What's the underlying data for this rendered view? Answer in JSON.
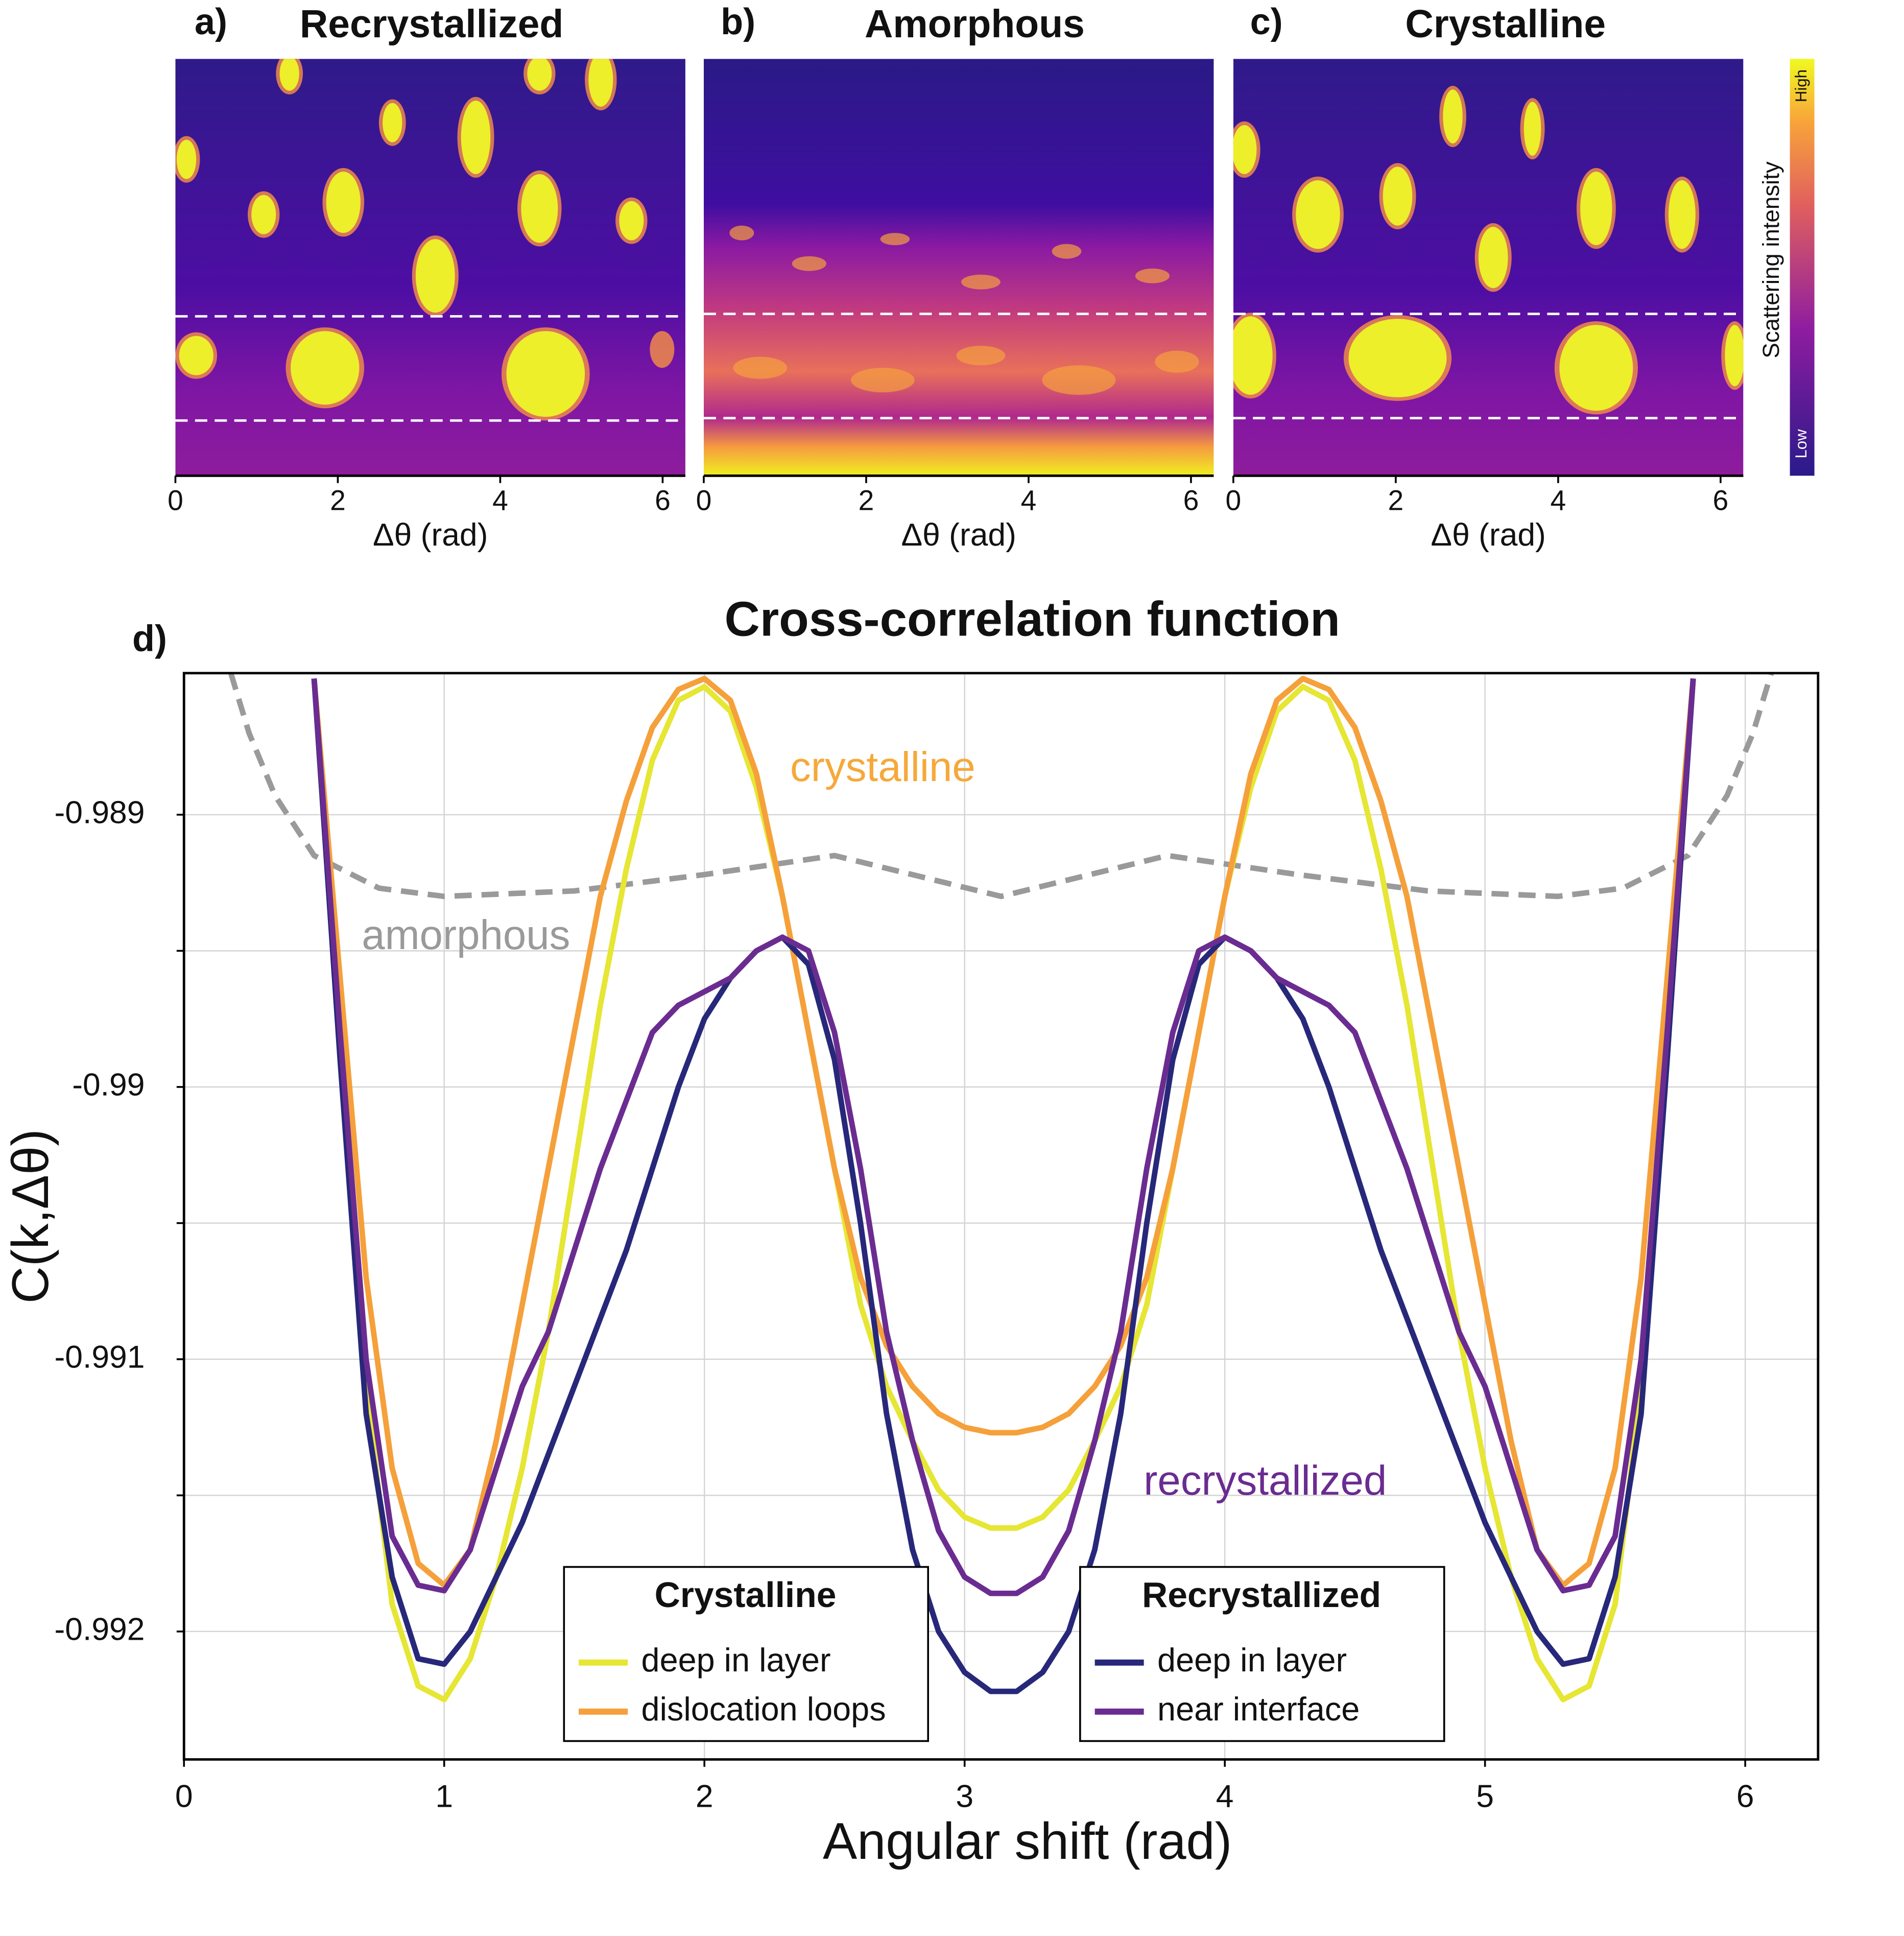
{
  "colorbar": {
    "label": "Scattering intensity",
    "high": "High",
    "low": "Low"
  },
  "chart_data": [
    {
      "type": "heatmap",
      "label": "a)",
      "title": "Recrystallized",
      "xlabel": "Δθ (rad)",
      "xlim": [
        0,
        6.28
      ],
      "xticks": [
        0,
        2,
        4,
        6
      ]
    },
    {
      "type": "heatmap",
      "label": "b)",
      "title": "Amorphous",
      "xlabel": "Δθ (rad)",
      "xlim": [
        0,
        6.28
      ],
      "xticks": [
        0,
        2,
        4,
        6
      ]
    },
    {
      "type": "heatmap",
      "label": "c)",
      "title": "Crystalline",
      "xlabel": "Δθ (rad)",
      "xlim": [
        0,
        6.28
      ],
      "xticks": [
        0,
        2,
        4,
        6
      ]
    },
    {
      "type": "line",
      "label": "d)",
      "title": "Cross-correlation function",
      "xlabel": "Angular shift (rad)",
      "ylabel": "C(k,Δθ)",
      "xlim": [
        0,
        6.28
      ],
      "xticks": [
        0,
        1,
        2,
        3,
        4,
        5,
        6
      ],
      "ylim": [
        -0.99247,
        -0.98848
      ],
      "yticks": [
        -0.989,
        -0.99,
        -0.991,
        -0.992
      ],
      "yminor": [
        -0.9895,
        -0.9905,
        -0.9915
      ],
      "grid": true,
      "x": [
        0.5,
        0.6,
        0.7,
        0.8,
        0.9,
        1.0,
        1.1,
        1.2,
        1.3,
        1.4,
        1.5,
        1.6,
        1.7,
        1.8,
        1.9,
        2.0,
        2.1,
        2.2,
        2.3,
        2.4,
        2.5,
        2.6,
        2.7,
        2.8,
        2.9,
        3.0,
        3.1,
        3.2,
        3.3,
        3.4,
        3.5,
        3.6,
        3.7,
        3.8,
        3.9,
        4.0,
        4.1,
        4.2,
        4.3,
        4.4,
        4.5,
        4.6,
        4.7,
        4.8,
        4.9,
        5.0,
        5.1,
        5.2,
        5.3,
        5.4,
        5.5,
        5.6,
        5.7,
        5.8
      ],
      "groups": [
        {
          "title": "Crystalline",
          "annotation": "crystalline",
          "annotation_color": "#f5a93a",
          "series": [
            {
              "name": "deep in layer",
              "color": "#e6e634",
              "values": [
                -0.9885,
                -0.9898,
                -0.9911,
                -0.9919,
                -0.9922,
                -0.99225,
                -0.9921,
                -0.9918,
                -0.9914,
                -0.9909,
                -0.9903,
                -0.9897,
                -0.9892,
                -0.9888,
                -0.98858,
                -0.98853,
                -0.98862,
                -0.9889,
                -0.9893,
                -0.9898,
                -0.9903,
                -0.9908,
                -0.9911,
                -0.9913,
                -0.99148,
                -0.99158,
                -0.99162,
                -0.99162,
                -0.99158,
                -0.99148,
                -0.9913,
                -0.9911,
                -0.9908,
                -0.9903,
                -0.9898,
                -0.9893,
                -0.9889,
                -0.98862,
                -0.98853,
                -0.98858,
                -0.9888,
                -0.9892,
                -0.9897,
                -0.9903,
                -0.9909,
                -0.9914,
                -0.9918,
                -0.9921,
                -0.99225,
                -0.9922,
                -0.9919,
                -0.9911,
                -0.9898,
                -0.9885
              ]
            },
            {
              "name": "dislocation loops",
              "color": "#f5a03a",
              "values": [
                -0.9885,
                -0.9896,
                -0.9907,
                -0.9914,
                -0.99175,
                -0.99183,
                -0.9917,
                -0.9913,
                -0.9908,
                -0.9903,
                -0.9898,
                -0.9893,
                -0.98895,
                -0.98868,
                -0.98854,
                -0.9885,
                -0.98858,
                -0.98885,
                -0.9893,
                -0.9898,
                -0.9903,
                -0.9907,
                -0.99095,
                -0.9911,
                -0.9912,
                -0.99125,
                -0.99127,
                -0.99127,
                -0.99125,
                -0.9912,
                -0.9911,
                -0.99095,
                -0.9907,
                -0.9903,
                -0.9898,
                -0.9893,
                -0.98885,
                -0.98858,
                -0.9885,
                -0.98854,
                -0.98868,
                -0.98895,
                -0.9893,
                -0.9898,
                -0.9903,
                -0.9908,
                -0.9913,
                -0.9917,
                -0.99183,
                -0.99175,
                -0.9914,
                -0.9907,
                -0.9896,
                -0.9885
              ]
            }
          ]
        },
        {
          "title": "Recrystallized",
          "annotation": "recrystallized",
          "annotation_color": "#6a2c91",
          "series": [
            {
              "name": "deep in layer",
              "color": "#27287a",
              "values": [
                -0.9885,
                -0.9899,
                -0.9912,
                -0.9918,
                -0.9921,
                -0.99212,
                -0.992,
                -0.9918,
                -0.9916,
                -0.99135,
                -0.9911,
                -0.99085,
                -0.9906,
                -0.9903,
                -0.99,
                -0.98975,
                -0.9896,
                -0.9895,
                -0.98945,
                -0.98955,
                -0.9899,
                -0.9905,
                -0.9912,
                -0.9917,
                -0.992,
                -0.99215,
                -0.99222,
                -0.99222,
                -0.99215,
                -0.992,
                -0.9917,
                -0.9912,
                -0.9905,
                -0.9899,
                -0.98955,
                -0.98945,
                -0.9895,
                -0.9896,
                -0.98975,
                -0.99,
                -0.9903,
                -0.9906,
                -0.99085,
                -0.9911,
                -0.99135,
                -0.9916,
                -0.9918,
                -0.992,
                -0.99212,
                -0.9921,
                -0.9918,
                -0.9912,
                -0.9899,
                -0.9885
              ]
            },
            {
              "name": "near interface",
              "color": "#6a2c91",
              "values": [
                -0.9885,
                -0.9898,
                -0.991,
                -0.99165,
                -0.99183,
                -0.99185,
                -0.9917,
                -0.9914,
                -0.9911,
                -0.9909,
                -0.9906,
                -0.9903,
                -0.99005,
                -0.9898,
                -0.9897,
                -0.98965,
                -0.9896,
                -0.9895,
                -0.98945,
                -0.9895,
                -0.9898,
                -0.9903,
                -0.9909,
                -0.9913,
                -0.99163,
                -0.9918,
                -0.99186,
                -0.99186,
                -0.9918,
                -0.99163,
                -0.9913,
                -0.9909,
                -0.9903,
                -0.9898,
                -0.9895,
                -0.98945,
                -0.9895,
                -0.9896,
                -0.98965,
                -0.9897,
                -0.9898,
                -0.99005,
                -0.9903,
                -0.9906,
                -0.9909,
                -0.9911,
                -0.9914,
                -0.9917,
                -0.99185,
                -0.99183,
                -0.99165,
                -0.991,
                -0.9898,
                -0.9885
              ]
            }
          ]
        }
      ],
      "reference": {
        "annotation": "amorphous",
        "color": "#9a9a9a",
        "style": "dashed",
        "x": [
          0.18,
          0.25,
          0.35,
          0.5,
          0.75,
          1.0,
          1.5,
          2.0,
          2.5,
          3.14,
          3.78,
          4.28,
          4.78,
          5.28,
          5.53,
          5.78,
          5.93,
          6.03,
          6.1
        ],
        "values": [
          -0.98848,
          -0.9887,
          -0.98893,
          -0.98915,
          -0.98927,
          -0.9893,
          -0.98928,
          -0.98922,
          -0.98915,
          -0.9893,
          -0.98915,
          -0.98922,
          -0.98928,
          -0.9893,
          -0.98927,
          -0.98915,
          -0.98893,
          -0.9887,
          -0.98848
        ]
      }
    }
  ]
}
